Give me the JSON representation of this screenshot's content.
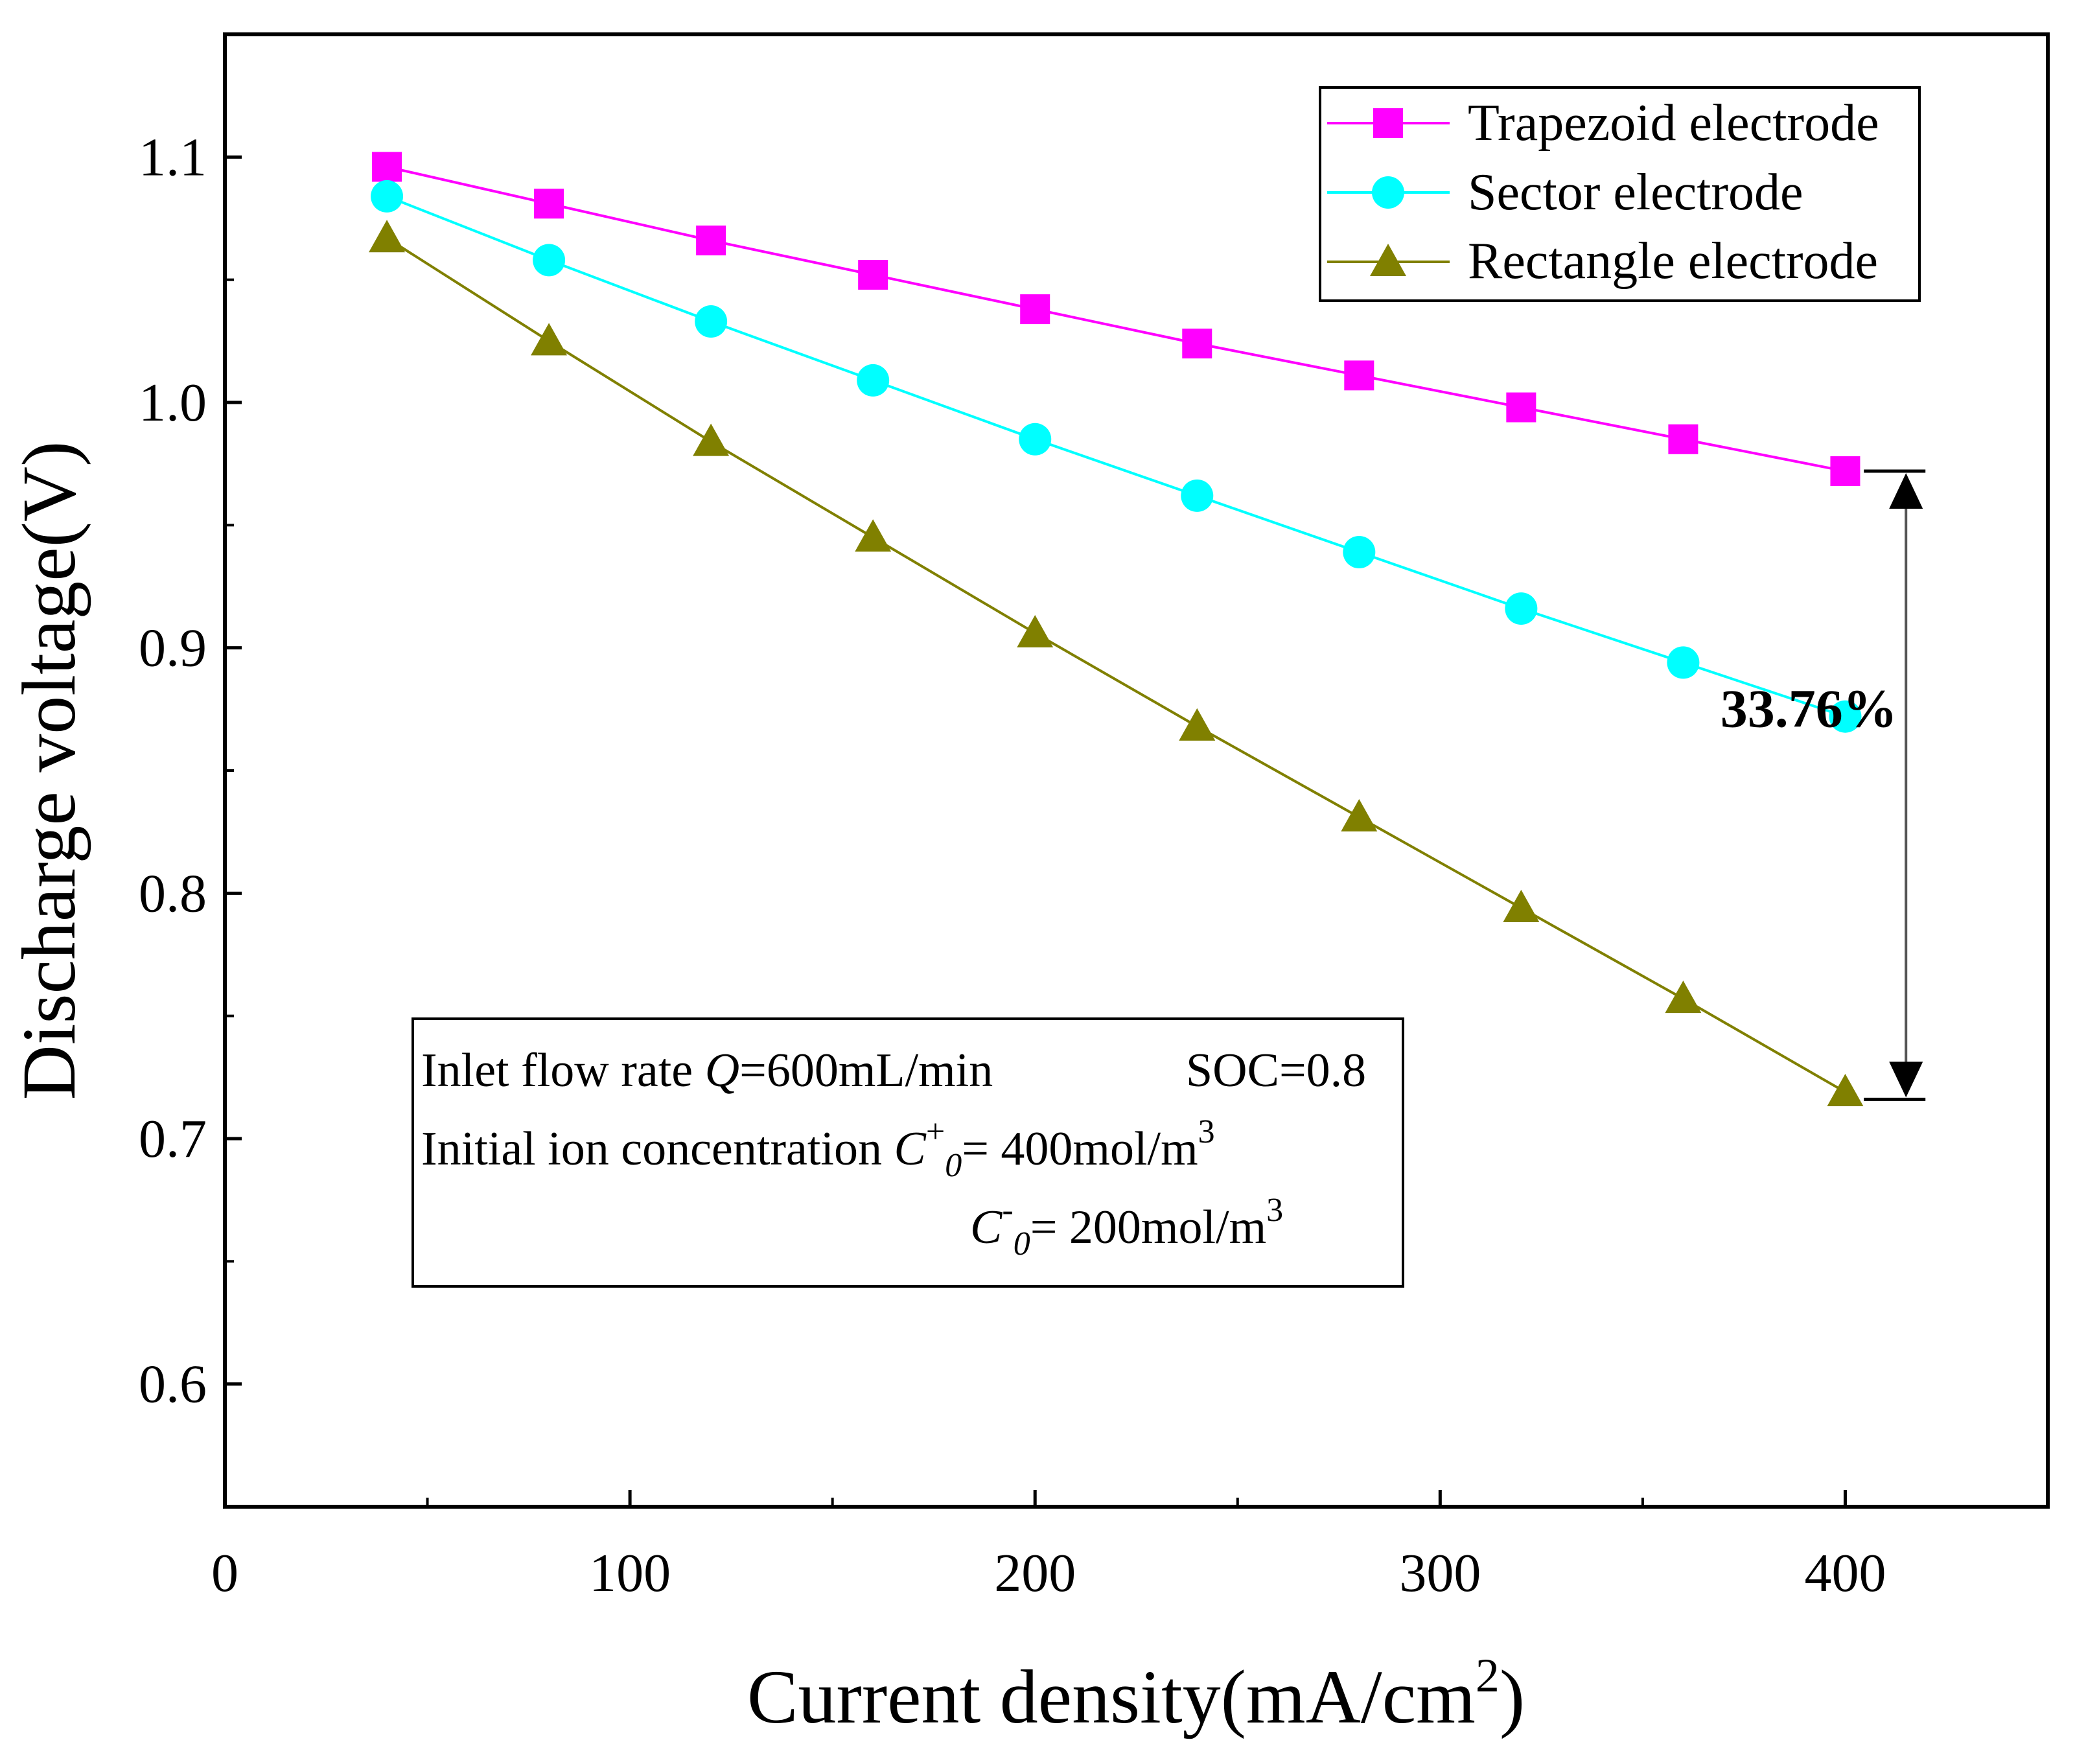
{
  "chart_data": {
    "type": "line",
    "xlabel": "Current density(mA/cm",
    "xlabel_sup": "2",
    "xlabel_close": ")",
    "ylabel": "Discharge voltage(V)",
    "xlim": [
      0,
      450
    ],
    "ylim": [
      0.55,
      1.15
    ],
    "x_ticks": [
      0,
      100,
      200,
      300,
      400
    ],
    "x_minor_ticks": [
      50,
      150,
      250,
      350
    ],
    "y_ticks": [
      0.6,
      0.7,
      0.8,
      0.9,
      1.0,
      1.1
    ],
    "y_tick_labels": [
      "0.6",
      "0.7",
      "0.8",
      "0.9",
      "1.0",
      "1.1"
    ],
    "y_minor_ticks": [
      0.65,
      0.75,
      0.85,
      0.95,
      1.05
    ],
    "x": [
      40,
      80,
      120,
      160,
      200,
      240,
      280,
      320,
      360,
      400
    ],
    "series": [
      {
        "name": "Trapezoid electrode",
        "color": "#ff00ff",
        "marker": "square",
        "values": [
          1.096,
          1.081,
          1.066,
          1.052,
          1.038,
          1.024,
          1.011,
          0.998,
          0.985,
          0.972
        ]
      },
      {
        "name": "Sector electrode",
        "color": "#00ffff",
        "marker": "circle",
        "values": [
          1.084,
          1.058,
          1.033,
          1.009,
          0.985,
          0.962,
          0.939,
          0.916,
          0.894,
          0.872
        ]
      },
      {
        "name": "Rectangle electrode",
        "color": "#808000",
        "marker": "triangle",
        "values": [
          1.067,
          1.025,
          0.984,
          0.945,
          0.906,
          0.868,
          0.831,
          0.794,
          0.757,
          0.719
        ]
      }
    ],
    "legend_position": "top-right",
    "annotation": {
      "text": "33.76%",
      "x": 415,
      "y_top": 0.972,
      "y_bottom": 0.716
    },
    "conditions": {
      "line1": "Inlet flow rate",
      "q_symbol": "Q",
      "q_value": "=600mL/min",
      "soc": "SOC=0.8",
      "line2": "Initial ion concentration",
      "c_symbol": "C",
      "c_plus_sup": "+",
      "c_minus_sup": "-",
      "c_sub": "0",
      "c_plus_value": "= 400mol/m",
      "c_minus_value": "= 200mol/m",
      "unit_sup": "3"
    }
  }
}
